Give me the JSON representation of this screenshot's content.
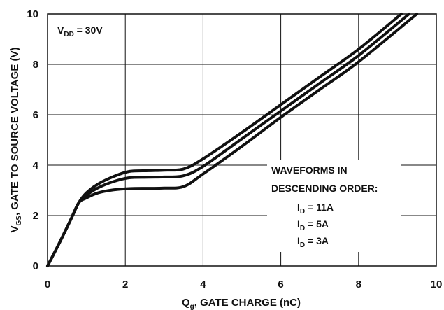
{
  "chart_data": {
    "type": "line",
    "xlabel_main": "Q",
    "xlabel_sub": "g",
    "xlabel_rest": ", GATE CHARGE (nC)",
    "ylabel_main": "V",
    "ylabel_sub": "GS",
    "ylabel_rest": ", GATE TO SOURCE VOLTAGE (V)",
    "xlim": [
      0,
      10
    ],
    "ylim": [
      0,
      10
    ],
    "x_ticks": [
      "0",
      "2",
      "4",
      "6",
      "8",
      "10"
    ],
    "y_ticks": [
      "0",
      "2",
      "4",
      "6",
      "8",
      "10"
    ],
    "grid": true,
    "condition": {
      "main": "V",
      "sub": "DD",
      "rest": " = 30V"
    },
    "legend": {
      "heading1": "WAVEFORMS IN",
      "heading2": "DESCENDING ORDER:",
      "entries": [
        {
          "main": "I",
          "sub": "D",
          "rest": " = 11A"
        },
        {
          "main": "I",
          "sub": "D",
          "rest": " = 5A"
        },
        {
          "main": "I",
          "sub": "D",
          "rest": " = 3A"
        }
      ]
    },
    "series": [
      {
        "points": [
          [
            0,
            0
          ],
          [
            0.3,
            0.9
          ],
          [
            0.6,
            1.85
          ],
          [
            0.8,
            2.5
          ],
          [
            1.0,
            2.9
          ],
          [
            1.3,
            3.25
          ],
          [
            1.7,
            3.55
          ],
          [
            2.1,
            3.75
          ],
          [
            2.6,
            3.78
          ],
          [
            3.0,
            3.8
          ],
          [
            3.5,
            3.85
          ],
          [
            4.0,
            4.25
          ],
          [
            5.0,
            5.3
          ],
          [
            6.0,
            6.4
          ],
          [
            7.0,
            7.5
          ],
          [
            8.0,
            8.6
          ],
          [
            9.1,
            10.0
          ]
        ]
      },
      {
        "points": [
          [
            0,
            0
          ],
          [
            0.3,
            0.9
          ],
          [
            0.6,
            1.85
          ],
          [
            0.8,
            2.5
          ],
          [
            1.0,
            2.8
          ],
          [
            1.3,
            3.1
          ],
          [
            1.7,
            3.35
          ],
          [
            2.1,
            3.5
          ],
          [
            2.6,
            3.52
          ],
          [
            3.0,
            3.53
          ],
          [
            3.5,
            3.58
          ],
          [
            4.0,
            3.95
          ],
          [
            5.0,
            5.05
          ],
          [
            6.0,
            6.15
          ],
          [
            7.0,
            7.25
          ],
          [
            8.0,
            8.35
          ],
          [
            9.3,
            10.0
          ]
        ]
      },
      {
        "points": [
          [
            0,
            0
          ],
          [
            0.3,
            0.9
          ],
          [
            0.6,
            1.85
          ],
          [
            0.8,
            2.5
          ],
          [
            1.0,
            2.7
          ],
          [
            1.3,
            2.9
          ],
          [
            1.7,
            3.02
          ],
          [
            2.1,
            3.07
          ],
          [
            2.6,
            3.08
          ],
          [
            3.0,
            3.09
          ],
          [
            3.5,
            3.15
          ],
          [
            4.0,
            3.65
          ],
          [
            5.0,
            4.75
          ],
          [
            6.0,
            5.9
          ],
          [
            7.0,
            7.0
          ],
          [
            8.0,
            8.1
          ],
          [
            9.5,
            10.0
          ]
        ]
      }
    ]
  }
}
